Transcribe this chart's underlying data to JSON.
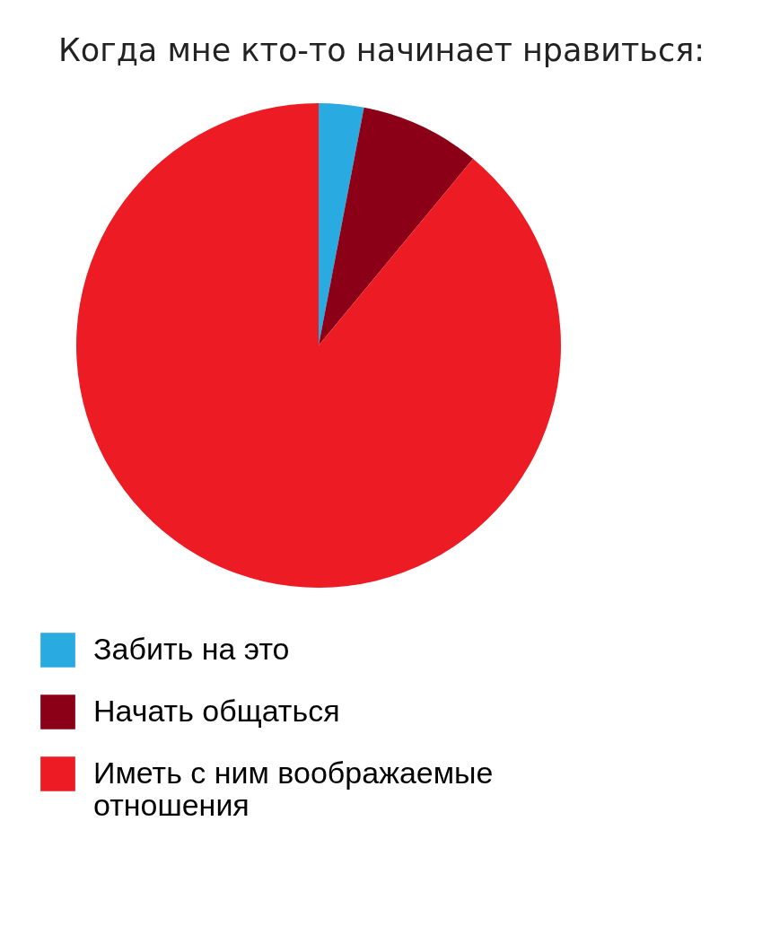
{
  "chart_data": {
    "type": "pie",
    "title": "Когда мне кто-то начинает нравиться:",
    "categories": [
      "Забить на это",
      "Начать общаться",
      "Иметь с ним воображаемые отношения"
    ],
    "values": [
      3,
      8,
      89
    ],
    "colors": [
      "#29abe2",
      "#8b0016",
      "#ed1c24"
    ],
    "legend": "bottom left"
  }
}
